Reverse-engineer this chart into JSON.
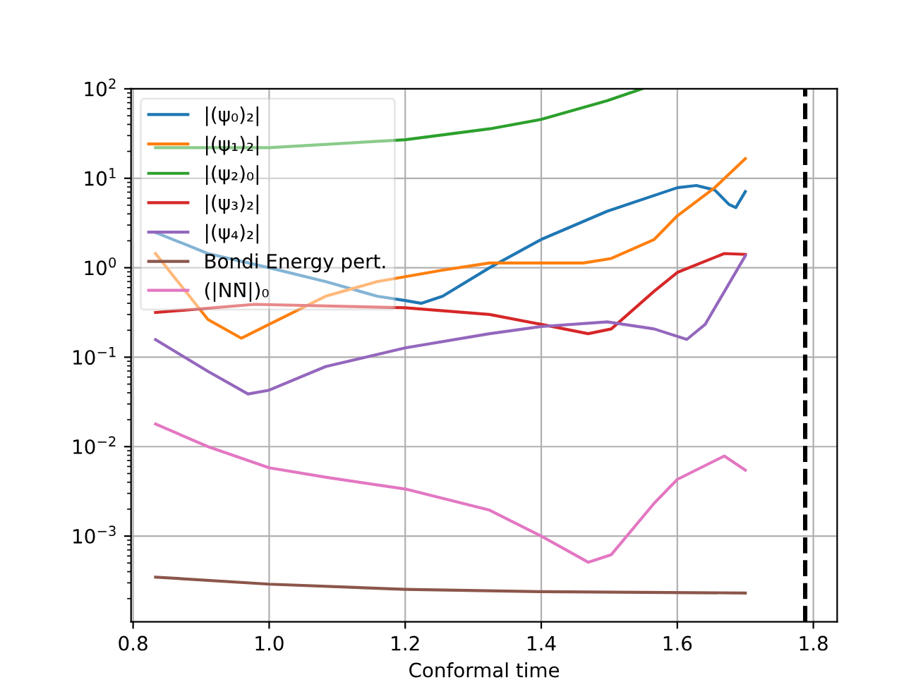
{
  "chart_data": {
    "type": "line",
    "xlabel": "Conformal time",
    "log": "y",
    "grid": true,
    "legend": "top left",
    "xlim": [
      0.797,
      1.835
    ],
    "ylim": [
      0.00011,
      100
    ],
    "xticks": [
      {
        "value": 0.8,
        "label": "0.8"
      },
      {
        "value": 1,
        "label": "1.0"
      },
      {
        "value": 1.2,
        "label": "1.2"
      },
      {
        "value": 1.4,
        "label": "1.4"
      },
      {
        "value": 1.6,
        "label": "1.6"
      },
      {
        "value": 1.8,
        "label": "1.8"
      }
    ],
    "yticks": [
      {
        "value": 0.001,
        "label": "10$^{−3}$"
      },
      {
        "value": 0.01,
        "label": "10$^{−2}$"
      },
      {
        "value": 0.1,
        "label": "10$^{−1}$"
      },
      {
        "value": 1,
        "label": "10$^{0}$"
      },
      {
        "value": 10,
        "label": "10$^{1}$"
      },
      {
        "value": 100,
        "label": "10$^{2}$"
      }
    ],
    "ref_lines": [
      {
        "axis": "x",
        "value": 1.788,
        "color": "#000000",
        "line_style": "dashed"
      }
    ],
    "series": [
      {
        "name": "|(ψ₀)₂|",
        "color": "#1f77b4",
        "x": [
          0.833,
          0.91,
          1.0,
          1.083,
          1.159,
          1.2,
          1.224,
          1.255,
          1.324,
          1.4,
          1.497,
          1.6,
          1.628,
          1.655,
          1.676,
          1.686,
          1.7
        ],
        "values": [
          2.48,
          1.44,
          1.0,
          0.7,
          0.48,
          0.43,
          0.4,
          0.48,
          1.0,
          2.07,
          4.28,
          7.85,
          8.3,
          7.4,
          5.1,
          4.7,
          7.1
        ]
      },
      {
        "name": "|(ψ₁)₂|",
        "color": "#ff7f0e",
        "x": [
          0.833,
          0.91,
          0.959,
          1.0,
          1.083,
          1.159,
          1.255,
          1.324,
          1.4,
          1.462,
          1.503,
          1.566,
          1.6,
          1.655,
          1.7
        ],
        "values": [
          1.44,
          0.264,
          0.163,
          0.233,
          0.48,
          0.7,
          0.94,
          1.13,
          1.13,
          1.13,
          1.27,
          2.07,
          3.8,
          7.85,
          16.6
        ]
      },
      {
        "name": "|(ψ₂)₀|",
        "color": "#2ca02c",
        "x": [
          0.833,
          0.91,
          1.0,
          1.2,
          1.324,
          1.4,
          1.497,
          1.548
        ],
        "values": [
          22,
          22,
          22,
          27,
          35.7,
          45.5,
          73.8,
          100
        ]
      },
      {
        "name": "|(ψ₃)₂|",
        "color": "#d62728",
        "x": [
          0.833,
          0.979,
          1.2,
          1.324,
          1.4,
          1.469,
          1.503,
          1.566,
          1.6,
          1.669,
          1.7
        ],
        "values": [
          0.316,
          0.39,
          0.357,
          0.3,
          0.233,
          0.183,
          0.207,
          0.546,
          0.886,
          1.44,
          1.41
        ]
      },
      {
        "name": "|(ψ₄)₂|",
        "color": "#9467bd",
        "x": [
          0.833,
          0.91,
          0.969,
          1.0,
          1.083,
          1.2,
          1.324,
          1.4,
          1.497,
          1.566,
          1.614,
          1.641,
          1.7
        ],
        "values": [
          0.157,
          0.0695,
          0.0388,
          0.0428,
          0.0785,
          0.127,
          0.183,
          0.22,
          0.248,
          0.207,
          0.158,
          0.233,
          1.36
        ]
      },
      {
        "name": "Bondi Energy pert.",
        "color": "#8c564b",
        "x": [
          0.833,
          1.0,
          1.2,
          1.4,
          1.7
        ],
        "values": [
          0.000348,
          0.00029,
          0.000254,
          0.000239,
          0.000231
        ]
      },
      {
        "name": "(|NN̄|)₀",
        "color": "#e377c2",
        "x": [
          0.833,
          0.91,
          1.0,
          1.083,
          1.2,
          1.324,
          1.4,
          1.469,
          1.503,
          1.566,
          1.6,
          1.669,
          1.7
        ],
        "values": [
          0.0179,
          0.01,
          0.0058,
          0.00455,
          0.00336,
          0.00195,
          0.001,
          0.00051,
          0.00062,
          0.00233,
          0.0043,
          0.00785,
          0.00546
        ]
      }
    ]
  }
}
